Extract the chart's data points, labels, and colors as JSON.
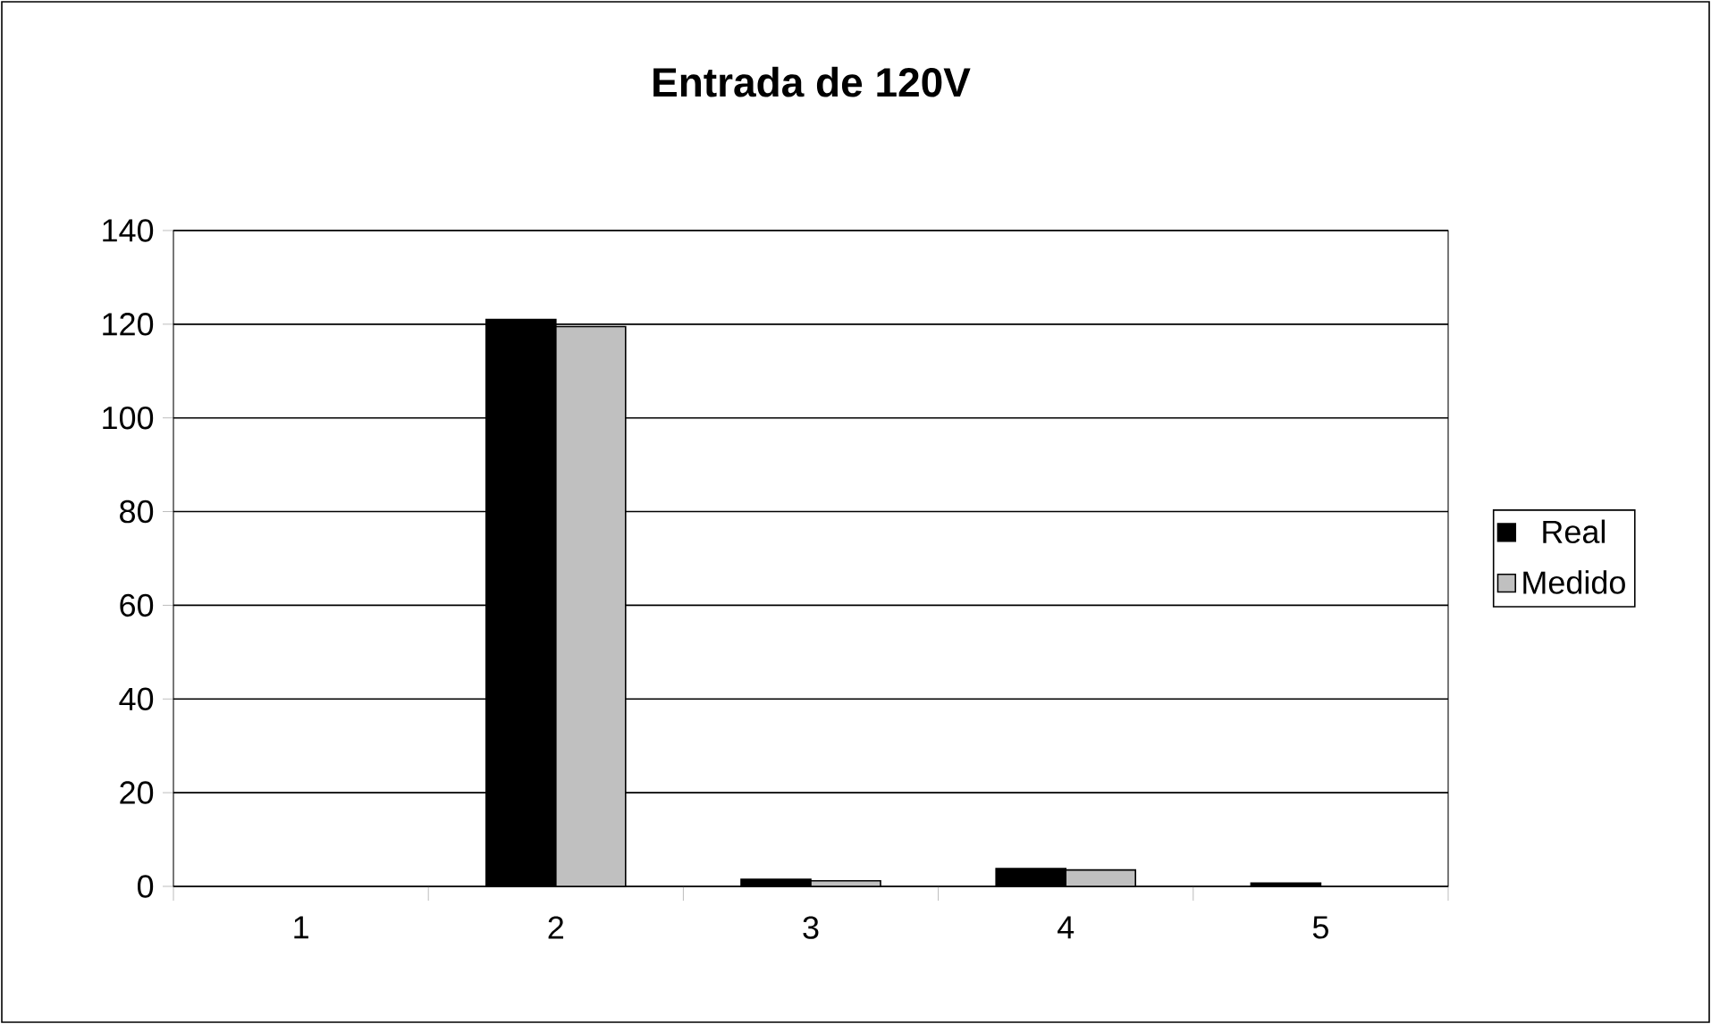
{
  "chart_data": {
    "type": "bar",
    "title": "Entrada de 120V",
    "categories": [
      "1",
      "2",
      "3",
      "4",
      "5"
    ],
    "series": [
      {
        "name": "Real",
        "color": "#000000",
        "values": [
          0,
          121,
          1.5,
          3.8,
          0.7
        ]
      },
      {
        "name": "Medido",
        "color": "#c0c0c0",
        "values": [
          0,
          119.5,
          1.2,
          3.5,
          0
        ]
      }
    ],
    "ylim": [
      0,
      140
    ],
    "yticks": [
      0,
      20,
      40,
      60,
      80,
      100,
      120,
      140
    ],
    "grid": "y",
    "legend": "right"
  }
}
